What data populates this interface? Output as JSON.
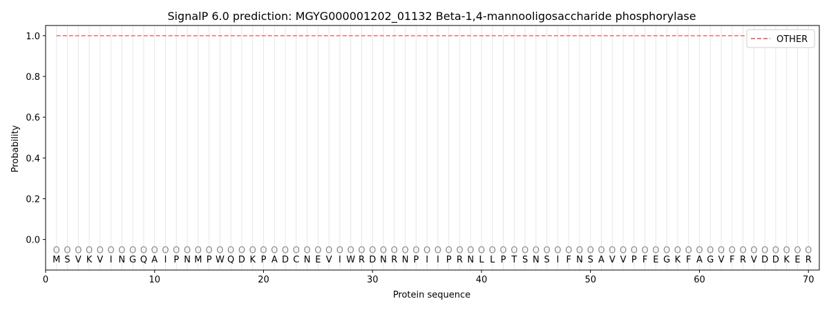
{
  "chart_data": {
    "type": "line",
    "title": "SignalP 6.0 prediction: MGYG000001202_01132 Beta-1,4-mannooligosaccharide phosphorylase",
    "xlabel": "Protein sequence",
    "ylabel": "Probability",
    "xlim": [
      0,
      71
    ],
    "ylim": [
      -0.15,
      1.05
    ],
    "x_ticks": [
      0,
      10,
      20,
      30,
      40,
      50,
      60,
      70
    ],
    "y_ticks": [
      0.0,
      0.2,
      0.4,
      0.6,
      0.8,
      1.0
    ],
    "legend_position": "top-right",
    "sequence": [
      "M",
      "S",
      "V",
      "K",
      "V",
      "I",
      "N",
      "G",
      "Q",
      "A",
      "I",
      "P",
      "N",
      "M",
      "P",
      "W",
      "Q",
      "D",
      "K",
      "P",
      "A",
      "D",
      "C",
      "N",
      "E",
      "V",
      "I",
      "W",
      "R",
      "D",
      "N",
      "R",
      "N",
      "P",
      "I",
      "I",
      "P",
      "R",
      "N",
      "L",
      "L",
      "P",
      "T",
      "S",
      "N",
      "S",
      "I",
      "F",
      "N",
      "S",
      "A",
      "V",
      "V",
      "P",
      "F",
      "E",
      "G",
      "K",
      "F",
      "A",
      "G",
      "V",
      "F",
      "R",
      "V",
      "D",
      "D",
      "K",
      "E",
      "R"
    ],
    "state_label": "O",
    "series": [
      {
        "name": "OTHER",
        "color": "#e8797a",
        "style": "dashed",
        "x_start": 1,
        "x_end": 70,
        "value": 1.0
      }
    ]
  }
}
